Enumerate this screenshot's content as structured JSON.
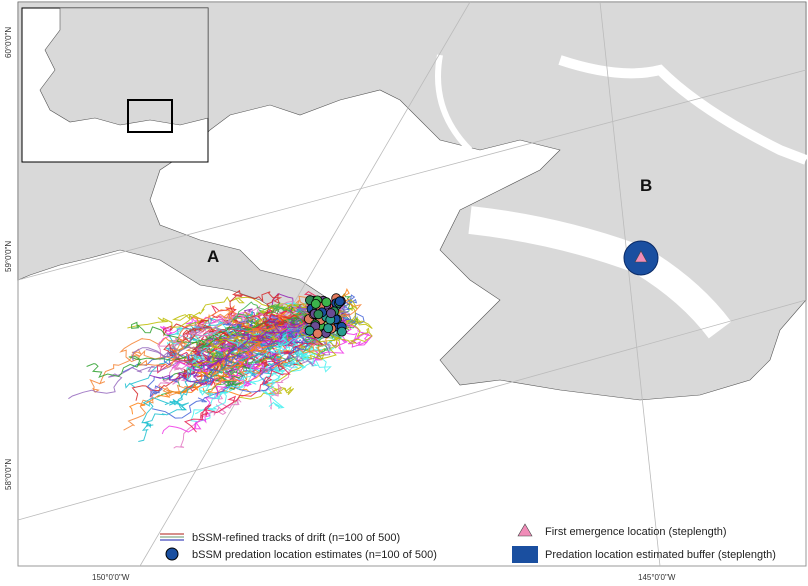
{
  "map_labels": {
    "a": "A",
    "b": "B"
  },
  "graticule_labels": {
    "lat_60": "60°0'0\"N",
    "lat_59": "59°0'0\"N",
    "lat_58": "58°0'0\"N",
    "lon_150": "150°0'0\"W",
    "lon_145": "145°0'0\"W"
  },
  "legend": {
    "tracks": "bSSM-refined tracks of drift (n=100 of 500)",
    "predation": "bSSM predation location estimates (n=100 of 500)",
    "emergence": "First emergence location (steplength)",
    "buffer": "Predation location estimated buffer (steplength)"
  }
}
